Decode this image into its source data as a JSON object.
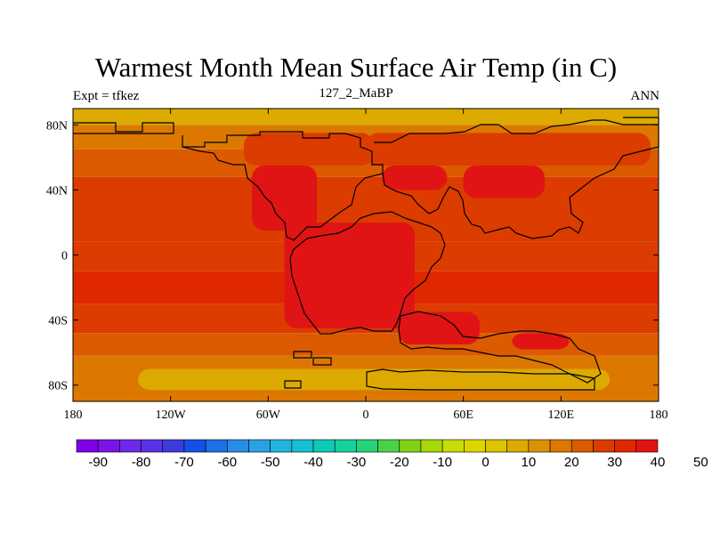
{
  "title": "Warmest Month Mean Surface Air Temp (in C)",
  "left_string": "Expt = tfkez",
  "center_string": "127_2_MaBP",
  "right_string": "ANN",
  "lat_labels": [
    "80N",
    "40N",
    "0",
    "40S",
    "80S"
  ],
  "lat_values": [
    80,
    40,
    0,
    -40,
    -80
  ],
  "lon_labels": [
    "180",
    "120W",
    "60W",
    "0",
    "60E",
    "120E",
    "180"
  ],
  "lon_values": [
    -180,
    -120,
    -60,
    0,
    60,
    120,
    180
  ],
  "colorbar": {
    "labels": [
      "-90",
      "-80",
      "-70",
      "-60",
      "-50",
      "-40",
      "-30",
      "-20",
      "-10",
      "0",
      "10",
      "20",
      "30",
      "40",
      "50"
    ],
    "label_values": [
      -90,
      -80,
      -70,
      -60,
      -50,
      -40,
      -30,
      -20,
      -10,
      0,
      10,
      20,
      30,
      40,
      50
    ],
    "min": -95,
    "step": 5,
    "colors": [
      "#7f00e6",
      "#7a14e8",
      "#6e28ea",
      "#5a32e6",
      "#3c3cdc",
      "#1450e6",
      "#1e6ee6",
      "#288ce6",
      "#2aa0e6",
      "#22b4e0",
      "#14c0d2",
      "#10cab8",
      "#14d29a",
      "#28d278",
      "#4ad246",
      "#82d214",
      "#a6d80a",
      "#c8dc08",
      "#dcd600",
      "#dcc400",
      "#dcaa00",
      "#dc9200",
      "#dc7800",
      "#dc5a00",
      "#dc3c00",
      "#e02800",
      "#e01414"
    ]
  },
  "lon_range": [
    -180,
    180
  ],
  "lat_range": [
    -90,
    90
  ],
  "chart_data": {
    "type": "heatmap",
    "title": "Warmest Month Mean Surface Air Temp (in C)",
    "units": "C",
    "x_range": [
      -180,
      180
    ],
    "y_range": [
      -90,
      90
    ],
    "bands": [
      {
        "lat": [
          80,
          90
        ],
        "value": 5
      },
      {
        "lat": [
          65,
          80
        ],
        "value": 15
      },
      {
        "lat": [
          48,
          65
        ],
        "value": 22
      },
      {
        "lat": [
          8,
          48
        ],
        "value": 27
      },
      {
        "lat": [
          -10,
          8
        ],
        "value": 25
      },
      {
        "lat": [
          -30,
          -10
        ],
        "value": 33
      },
      {
        "lat": [
          -48,
          -30
        ],
        "value": 27
      },
      {
        "lat": [
          -62,
          -48
        ],
        "value": 20
      },
      {
        "lat": [
          -90,
          -62
        ],
        "value": 17
      }
    ],
    "regions": [
      {
        "lon": [
          -75,
          5
        ],
        "lat": [
          55,
          75
        ],
        "value": 25
      },
      {
        "lon": [
          0,
          175
        ],
        "lat": [
          55,
          75
        ],
        "value": 27
      },
      {
        "lon": [
          -70,
          -30
        ],
        "lat": [
          15,
          55
        ],
        "value": 40
      },
      {
        "lon": [
          10,
          50
        ],
        "lat": [
          40,
          55
        ],
        "value": 38
      },
      {
        "lon": [
          60,
          110
        ],
        "lat": [
          35,
          55
        ],
        "value": 40
      },
      {
        "lon": [
          -50,
          30
        ],
        "lat": [
          -45,
          20
        ],
        "value": 40
      },
      {
        "lon": [
          20,
          70
        ],
        "lat": [
          -55,
          -35
        ],
        "value": 35
      },
      {
        "lon": [
          90,
          125
        ],
        "lat": [
          -58,
          -48
        ],
        "value": 35
      },
      {
        "lon": [
          -140,
          150
        ],
        "lat": [
          -83,
          -70
        ],
        "value": 5
      }
    ]
  }
}
